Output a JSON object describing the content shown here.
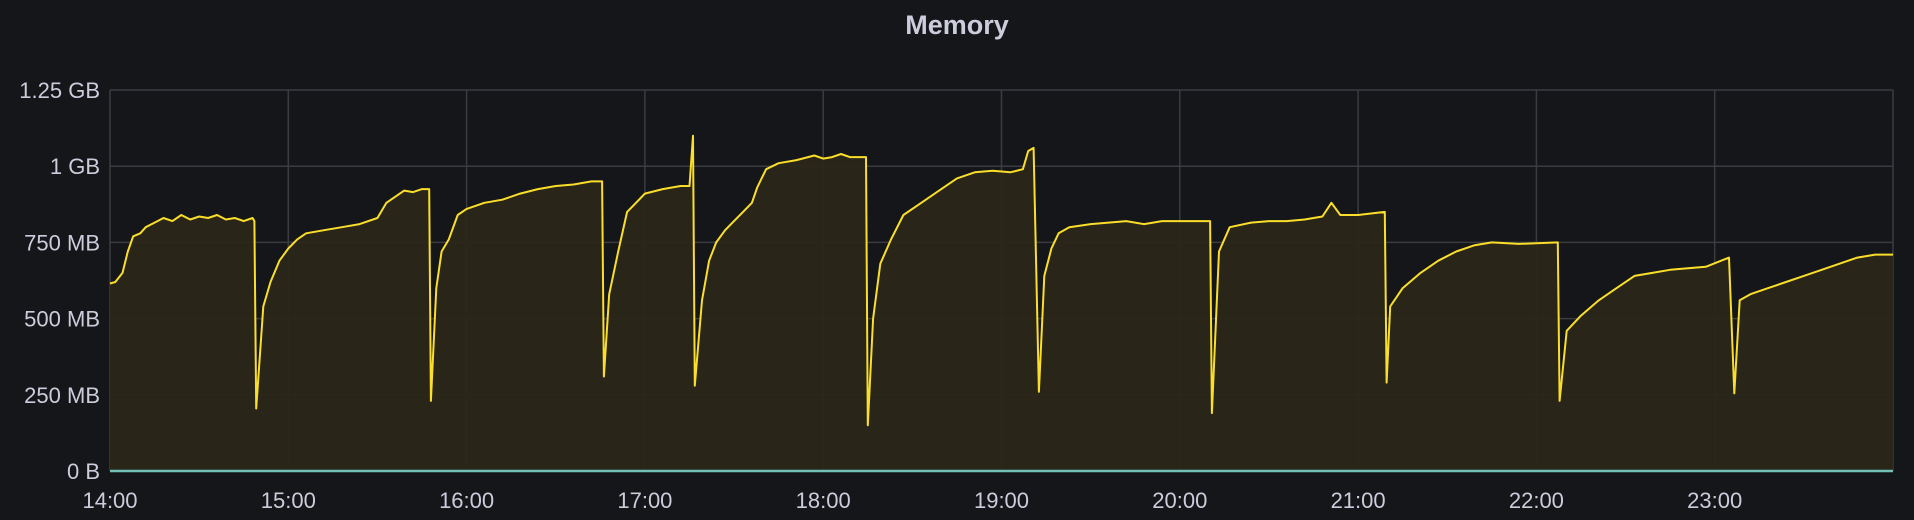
{
  "panel": {
    "title": "Memory"
  },
  "chart_data": {
    "type": "area",
    "title": "Memory",
    "xlabel": "",
    "ylabel": "",
    "x_ticks": [
      "14:00",
      "15:00",
      "16:00",
      "17:00",
      "18:00",
      "19:00",
      "20:00",
      "21:00",
      "22:00",
      "23:00"
    ],
    "y_ticks": [
      "0 B",
      "250 MB",
      "500 MB",
      "750 MB",
      "1 GB",
      "1.25 GB"
    ],
    "y_tick_values_mb": [
      0,
      250,
      500,
      750,
      1000,
      1250
    ],
    "xlim_hours": [
      14.0,
      24.0
    ],
    "ylim_mb": [
      0,
      1250
    ],
    "grid": true,
    "colors": {
      "series_line": "#fade2a",
      "series_fill": "#2a2719",
      "baseline": "#73bfb8",
      "grid": "#3a3c42",
      "background": "#141619",
      "text": "#ccccdc"
    },
    "series": [
      {
        "color": "#fade2a",
        "points": [
          [
            14.0,
            615
          ],
          [
            14.03,
            620
          ],
          [
            14.07,
            650
          ],
          [
            14.1,
            720
          ],
          [
            14.13,
            770
          ],
          [
            14.17,
            780
          ],
          [
            14.2,
            800
          ],
          [
            14.25,
            815
          ],
          [
            14.3,
            830
          ],
          [
            14.35,
            820
          ],
          [
            14.4,
            840
          ],
          [
            14.45,
            825
          ],
          [
            14.5,
            835
          ],
          [
            14.55,
            830
          ],
          [
            14.6,
            840
          ],
          [
            14.65,
            825
          ],
          [
            14.7,
            830
          ],
          [
            14.75,
            820
          ],
          [
            14.8,
            830
          ],
          [
            14.81,
            820
          ],
          [
            14.82,
            205
          ],
          [
            14.86,
            540
          ],
          [
            14.9,
            620
          ],
          [
            14.95,
            690
          ],
          [
            15.0,
            730
          ],
          [
            15.05,
            760
          ],
          [
            15.1,
            780
          ],
          [
            15.2,
            790
          ],
          [
            15.3,
            800
          ],
          [
            15.4,
            810
          ],
          [
            15.5,
            830
          ],
          [
            15.55,
            880
          ],
          [
            15.6,
            900
          ],
          [
            15.65,
            920
          ],
          [
            15.7,
            915
          ],
          [
            15.75,
            925
          ],
          [
            15.79,
            925
          ],
          [
            15.8,
            230
          ],
          [
            15.83,
            600
          ],
          [
            15.86,
            720
          ],
          [
            15.9,
            760
          ],
          [
            15.95,
            840
          ],
          [
            16.0,
            860
          ],
          [
            16.1,
            880
          ],
          [
            16.2,
            890
          ],
          [
            16.3,
            910
          ],
          [
            16.4,
            925
          ],
          [
            16.5,
            935
          ],
          [
            16.6,
            940
          ],
          [
            16.7,
            950
          ],
          [
            16.76,
            950
          ],
          [
            16.77,
            310
          ],
          [
            16.8,
            580
          ],
          [
            16.85,
            720
          ],
          [
            16.9,
            850
          ],
          [
            16.95,
            880
          ],
          [
            17.0,
            910
          ],
          [
            17.1,
            925
          ],
          [
            17.2,
            935
          ],
          [
            17.25,
            935
          ],
          [
            17.27,
            1100
          ],
          [
            17.28,
            280
          ],
          [
            17.32,
            560
          ],
          [
            17.36,
            690
          ],
          [
            17.4,
            750
          ],
          [
            17.45,
            790
          ],
          [
            17.5,
            820
          ],
          [
            17.55,
            850
          ],
          [
            17.6,
            880
          ],
          [
            17.63,
            930
          ],
          [
            17.68,
            990
          ],
          [
            17.75,
            1010
          ],
          [
            17.85,
            1020
          ],
          [
            17.95,
            1035
          ],
          [
            18.0,
            1025
          ],
          [
            18.05,
            1030
          ],
          [
            18.1,
            1040
          ],
          [
            18.15,
            1030
          ],
          [
            18.24,
            1030
          ],
          [
            18.25,
            150
          ],
          [
            18.28,
            500
          ],
          [
            18.32,
            680
          ],
          [
            18.38,
            760
          ],
          [
            18.45,
            840
          ],
          [
            18.55,
            880
          ],
          [
            18.65,
            920
          ],
          [
            18.75,
            960
          ],
          [
            18.85,
            980
          ],
          [
            18.95,
            985
          ],
          [
            19.05,
            980
          ],
          [
            19.12,
            990
          ],
          [
            19.15,
            1050
          ],
          [
            19.18,
            1060
          ],
          [
            19.21,
            260
          ],
          [
            19.24,
            640
          ],
          [
            19.28,
            730
          ],
          [
            19.32,
            780
          ],
          [
            19.38,
            800
          ],
          [
            19.5,
            810
          ],
          [
            19.6,
            815
          ],
          [
            19.7,
            820
          ],
          [
            19.8,
            810
          ],
          [
            19.9,
            820
          ],
          [
            20.0,
            820
          ],
          [
            20.17,
            820
          ],
          [
            20.18,
            190
          ],
          [
            20.22,
            720
          ],
          [
            20.28,
            800
          ],
          [
            20.4,
            815
          ],
          [
            20.5,
            820
          ],
          [
            20.6,
            820
          ],
          [
            20.7,
            825
          ],
          [
            20.8,
            835
          ],
          [
            20.85,
            880
          ],
          [
            20.9,
            840
          ],
          [
            21.0,
            840
          ],
          [
            21.15,
            850
          ],
          [
            21.16,
            290
          ],
          [
            21.18,
            540
          ],
          [
            21.25,
            600
          ],
          [
            21.35,
            650
          ],
          [
            21.45,
            690
          ],
          [
            21.55,
            720
          ],
          [
            21.65,
            740
          ],
          [
            21.75,
            750
          ],
          [
            21.9,
            745
          ],
          [
            22.12,
            750
          ],
          [
            22.13,
            230
          ],
          [
            22.17,
            460
          ],
          [
            22.25,
            510
          ],
          [
            22.35,
            560
          ],
          [
            22.45,
            600
          ],
          [
            22.55,
            640
          ],
          [
            22.65,
            650
          ],
          [
            22.75,
            660
          ],
          [
            22.85,
            665
          ],
          [
            22.95,
            670
          ],
          [
            23.08,
            700
          ],
          [
            23.11,
            255
          ],
          [
            23.14,
            560
          ],
          [
            23.2,
            580
          ],
          [
            23.3,
            600
          ],
          [
            23.4,
            620
          ],
          [
            23.5,
            640
          ],
          [
            23.6,
            660
          ],
          [
            23.7,
            680
          ],
          [
            23.8,
            700
          ],
          [
            23.9,
            710
          ],
          [
            24.0,
            710
          ]
        ]
      },
      {
        "color": "#73bfb8",
        "points": [
          [
            14.0,
            0
          ],
          [
            24.0,
            0
          ]
        ]
      }
    ]
  }
}
